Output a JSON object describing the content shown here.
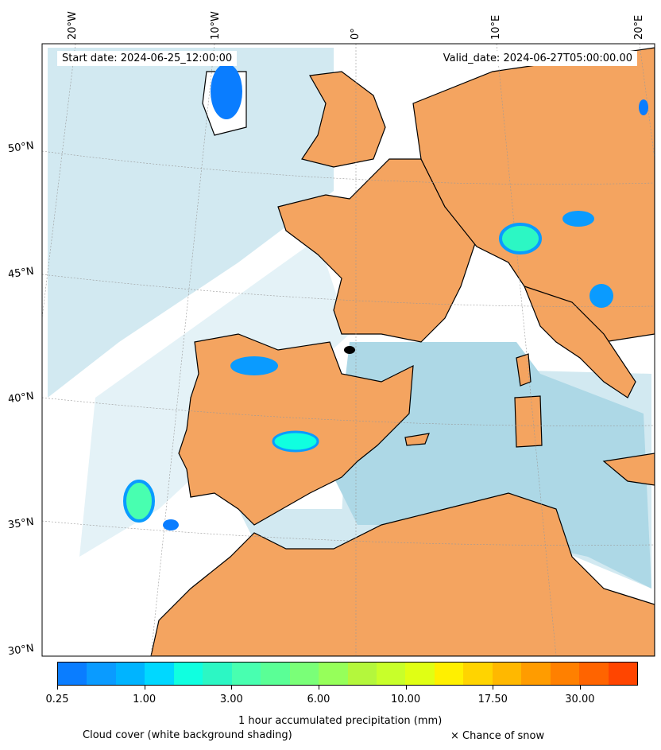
{
  "header": {
    "start_date": "Start date: 2024-06-25_12:00:00",
    "valid_date": "Valid_date: 2024-06-27T05:00:00.00"
  },
  "axes": {
    "lon_labels": [
      "20°W",
      "10°W",
      "0°",
      "10°E",
      "20°E"
    ],
    "lat_labels": [
      "50°N",
      "45°N",
      "40°N",
      "35°N",
      "30°N"
    ]
  },
  "colors": {
    "land_dry": "#f4a460",
    "cloud_shading": "#add8e6",
    "coastline": "#000000"
  },
  "colorbar": {
    "label": "1 hour accumulated precipitation (mm)",
    "tick_labels": [
      "0.25",
      "1.00",
      "3.00",
      "6.00",
      "10.00",
      "17.50",
      "30.00"
    ],
    "bins": [
      "#0a7dff",
      "#0a9bff",
      "#00b4ff",
      "#00d8ff",
      "#10ffe0",
      "#2cf7c4",
      "#48ffb0",
      "#5aff96",
      "#7aff78",
      "#96ff5a",
      "#b4f73c",
      "#c8ff2a",
      "#e0ff14",
      "#fff000",
      "#ffd400",
      "#ffb800",
      "#ff9c00",
      "#ff8000",
      "#ff6400",
      "#ff4500"
    ]
  },
  "legend": {
    "cloud_cover": "Cloud cover (white background shading)",
    "snow": "× Chance of snow"
  }
}
